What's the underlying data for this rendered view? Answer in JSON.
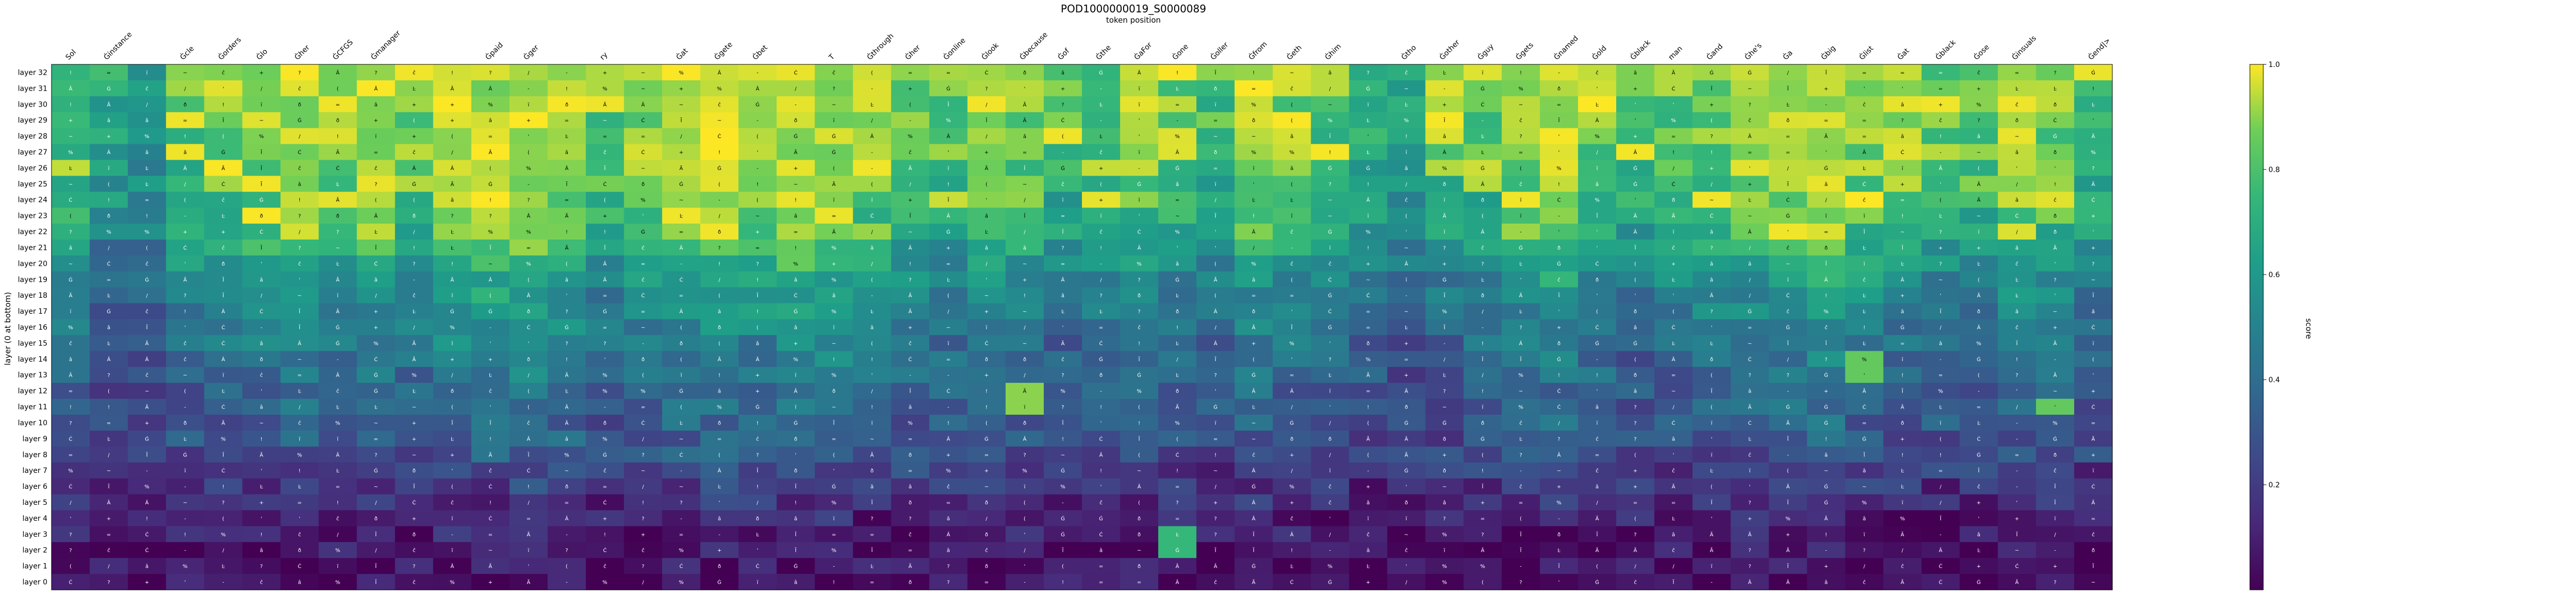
{
  "chart_data": {
    "type": "heatmap",
    "title": "POD1000000019_S0000089",
    "xlabel": "token position",
    "ylabel": "layer (0 at bottom)",
    "colorbar_label": "score",
    "colorbar_range": [
      0.0,
      1.0
    ],
    "colorbar_ticks": [
      "0.2",
      "0.4",
      "0.6",
      "0.8",
      "1.0"
    ],
    "colormap": "viridis",
    "x_tokens": [
      "Sol",
      "Ġinstance",
      "",
      "Ġcle",
      "Ġorders",
      "Ġlo",
      "Ġher",
      "ĠCFGS",
      "Ġmanager",
      "",
      "",
      "Ġpaid",
      "Ġger",
      "",
      "ry",
      "",
      "Ġat",
      "Ġgete",
      "Ġbet",
      "",
      "T",
      "Ġthrough",
      "Ġher",
      "Ġonline",
      "Ġlook",
      "Ġbecause",
      "Ġof",
      "Ġthe",
      "ĠaFor",
      "Ġone",
      "Ġoller",
      "Ġfrom",
      "Ġeth",
      "Ġhim",
      "",
      "Ġtho",
      "Ġother",
      "Ġguy",
      "Ġgets",
      "Ġnamed",
      "Ġold",
      "Ġblack",
      "man",
      "Ġand",
      "Ġhe's",
      "Ġa",
      "Ġbig",
      "Ġlist",
      "Ġat",
      "Ġblack",
      "Ġose",
      "Ġinsuals",
      "",
      "Ġend|>"
    ],
    "y_layers": [
      "layer 32",
      "layer 31",
      "layer 30",
      "layer 29",
      "layer 28",
      "layer 27",
      "layer 26",
      "layer 25",
      "layer 24",
      "layer 23",
      "layer 22",
      "layer 21",
      "layer 20",
      "layer 19",
      "layer 18",
      "layer 17",
      "layer 16",
      "layer 15",
      "layer 14",
      "layer 13",
      "layer 12",
      "layer 11",
      "layer 10",
      "layer 9",
      "layer 8",
      "layer 7",
      "layer 6",
      "layer 5",
      "layer 4",
      "layer 3",
      "layer 2",
      "layer 1",
      "layer 0"
    ],
    "row_profile": [
      0.84,
      0.83,
      0.82,
      0.81,
      0.8,
      0.78,
      0.76,
      0.74,
      0.72,
      0.69,
      0.66,
      0.6,
      0.56,
      0.52,
      0.48,
      0.45,
      0.42,
      0.39,
      0.37,
      0.35,
      0.33,
      0.32,
      0.3,
      0.28,
      0.25,
      0.2,
      0.16,
      0.13,
      0.1,
      0.08,
      0.06,
      0.05,
      0.04
    ],
    "column_bias": [
      0.0,
      -0.15,
      -0.2,
      0.0,
      0.05,
      0.1,
      0.15,
      0.1,
      0.15,
      0.05,
      0.2,
      0.2,
      0.25,
      0.15,
      0.0,
      0.05,
      0.15,
      0.2,
      0.15,
      0.25,
      0.2,
      0.1,
      0.05,
      0.0,
      0.1,
      0.05,
      -0.05,
      0.0,
      0.05,
      0.0,
      -0.05,
      0.1,
      0.05,
      0.0,
      -0.1,
      -0.15,
      -0.05,
      0.0,
      0.1,
      0.15,
      0.05,
      -0.05,
      0.0,
      0.05,
      0.1,
      0.15,
      0.2,
      0.1,
      0.05,
      0.0,
      0.0,
      0.1,
      0.05,
      -0.05
    ],
    "highlights": [
      {
        "layer": "layer 3",
        "token_index": 29,
        "value": 0.75
      },
      {
        "layer": "layer 2",
        "token_index": 29,
        "value": 0.75
      },
      {
        "layer": "layer 12",
        "token_index": 25,
        "value": 0.9
      },
      {
        "layer": "layer 11",
        "token_index": 25,
        "value": 0.9
      },
      {
        "layer": "layer 14",
        "token_index": 47,
        "value": 0.85
      },
      {
        "layer": "layer 13",
        "token_index": 47,
        "value": 0.85
      },
      {
        "layer": "layer 11",
        "token_index": 52,
        "value": 0.85
      }
    ],
    "cell_glyphs": [
      "Ġ",
      "ĉ",
      "Ã",
      "Ċ",
      "Â",
      "â",
      "ð",
      "ï",
      "Ĩ",
      "Ŀ",
      "!",
      "/",
      "(",
      "-",
      "~",
      "=",
      "+",
      "'",
      "?",
      "%"
    ]
  }
}
